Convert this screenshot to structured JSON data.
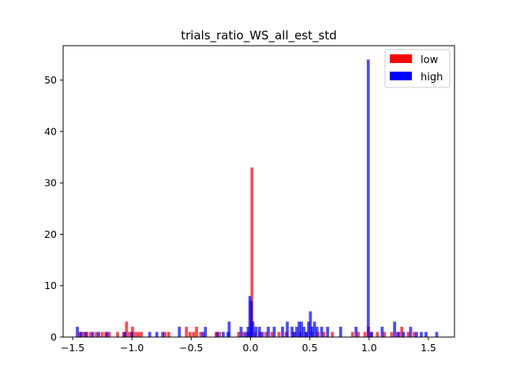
{
  "chart_data": {
    "type": "bar",
    "title": "trials_ratio_WS_all_est_std",
    "xlabel": "",
    "ylabel": "",
    "xlim": [
      -1.58,
      1.72
    ],
    "ylim": [
      0,
      56.7
    ],
    "xticks": [
      -1.5,
      -1.0,
      -0.5,
      0.0,
      0.5,
      1.0,
      1.5
    ],
    "xtick_labels": [
      "−1.5",
      "−1.0",
      "−0.5",
      "0.0",
      "0.5",
      "1.0",
      "1.5"
    ],
    "yticks": [
      0,
      10,
      20,
      30,
      40,
      50
    ],
    "ytick_labels": [
      "0",
      "10",
      "20",
      "30",
      "40",
      "50"
    ],
    "legend": {
      "placement": "top-right",
      "entries": [
        "low",
        "high"
      ]
    },
    "series": [
      {
        "name": "low",
        "color": "#ff0000",
        "bin_width": 0.025,
        "bars": [
          [
            -1.44,
            1
          ],
          [
            -1.41,
            1
          ],
          [
            -1.38,
            1
          ],
          [
            -1.35,
            1
          ],
          [
            -1.3,
            1
          ],
          [
            -1.25,
            1
          ],
          [
            -1.22,
            1
          ],
          [
            -1.19,
            1
          ],
          [
            -1.12,
            1
          ],
          [
            -1.07,
            1
          ],
          [
            -1.045,
            3
          ],
          [
            -1.02,
            1
          ],
          [
            -0.995,
            2
          ],
          [
            -0.97,
            1
          ],
          [
            -0.945,
            1
          ],
          [
            -0.92,
            1
          ],
          [
            -0.72,
            1
          ],
          [
            -0.69,
            1
          ],
          [
            -0.54,
            2
          ],
          [
            -0.51,
            1
          ],
          [
            -0.48,
            1
          ],
          [
            -0.455,
            2
          ],
          [
            -0.42,
            1
          ],
          [
            -0.29,
            1
          ],
          [
            -0.26,
            1
          ],
          [
            -0.1,
            1
          ],
          [
            -0.06,
            1
          ],
          [
            -0.02,
            1
          ],
          [
            0.012,
            33
          ],
          [
            0.04,
            1
          ],
          [
            0.08,
            1
          ],
          [
            0.13,
            1
          ],
          [
            0.18,
            1
          ],
          [
            0.24,
            1
          ],
          [
            0.3,
            1
          ],
          [
            0.36,
            1
          ],
          [
            0.42,
            1
          ],
          [
            0.47,
            1
          ],
          [
            0.52,
            1
          ],
          [
            0.57,
            1
          ],
          [
            0.62,
            1
          ],
          [
            0.69,
            1
          ],
          [
            0.86,
            1
          ],
          [
            0.91,
            1
          ],
          [
            0.965,
            1
          ],
          [
            0.995,
            2
          ],
          [
            1.02,
            1
          ],
          [
            1.07,
            1
          ],
          [
            1.13,
            1
          ],
          [
            1.19,
            1
          ],
          [
            1.24,
            1
          ],
          [
            1.275,
            2
          ],
          [
            1.33,
            1
          ],
          [
            1.38,
            1
          ]
        ]
      },
      {
        "name": "high",
        "color": "#0000ff",
        "bin_width": 0.025,
        "bars": [
          [
            -1.46,
            2
          ],
          [
            -1.43,
            1
          ],
          [
            -1.39,
            1
          ],
          [
            -1.33,
            1
          ],
          [
            -1.28,
            1
          ],
          [
            -1.21,
            1
          ],
          [
            -1.06,
            1
          ],
          [
            -1.0,
            1
          ],
          [
            -0.85,
            1
          ],
          [
            -0.79,
            1
          ],
          [
            -0.74,
            1
          ],
          [
            -0.6,
            2
          ],
          [
            -0.4,
            1
          ],
          [
            -0.38,
            2
          ],
          [
            -0.28,
            1
          ],
          [
            -0.23,
            1
          ],
          [
            -0.19,
            1
          ],
          [
            -0.18,
            3
          ],
          [
            -0.08,
            2
          ],
          [
            -0.04,
            1
          ],
          [
            -0.02,
            2
          ],
          [
            -0.005,
            8
          ],
          [
            0.005,
            7
          ],
          [
            0.02,
            3
          ],
          [
            0.045,
            2
          ],
          [
            0.075,
            2
          ],
          [
            0.1,
            1
          ],
          [
            0.15,
            2
          ],
          [
            0.2,
            2
          ],
          [
            0.27,
            2
          ],
          [
            0.31,
            3
          ],
          [
            0.35,
            2
          ],
          [
            0.375,
            1
          ],
          [
            0.39,
            2
          ],
          [
            0.41,
            3
          ],
          [
            0.43,
            3
          ],
          [
            0.45,
            2
          ],
          [
            0.47,
            1
          ],
          [
            0.49,
            3
          ],
          [
            0.505,
            5
          ],
          [
            0.52,
            2
          ],
          [
            0.54,
            3
          ],
          [
            0.56,
            2
          ],
          [
            0.6,
            2
          ],
          [
            0.65,
            2
          ],
          [
            0.76,
            2
          ],
          [
            0.89,
            2
          ],
          [
            0.993,
            54
          ],
          [
            1.02,
            1
          ],
          [
            1.11,
            2
          ],
          [
            1.215,
            3
          ],
          [
            1.25,
            1
          ],
          [
            1.29,
            1
          ],
          [
            1.35,
            2
          ],
          [
            1.4,
            1
          ],
          [
            1.44,
            1
          ],
          [
            1.48,
            1
          ],
          [
            1.57,
            1
          ]
        ]
      }
    ]
  }
}
